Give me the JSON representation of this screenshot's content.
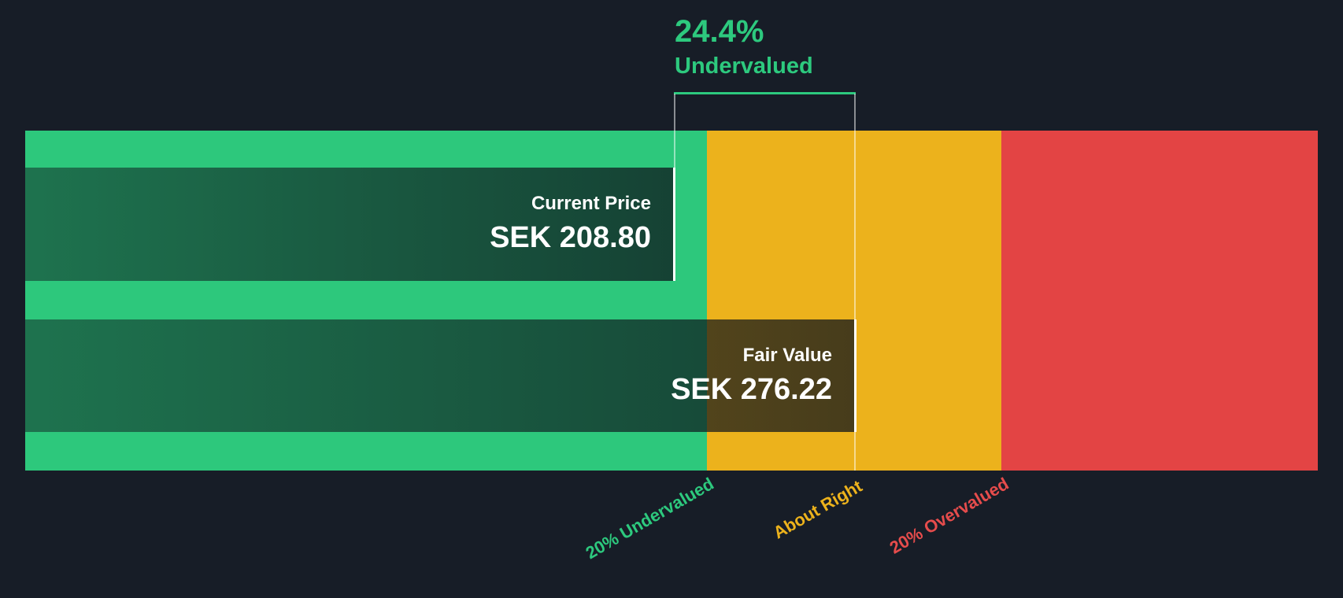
{
  "annotation": {
    "percent": "24.4%",
    "label": "Undervalued"
  },
  "boxes": {
    "current": {
      "label": "Current Price",
      "value": "SEK 208.80"
    },
    "fair": {
      "label": "Fair Value",
      "value": "SEK 276.22"
    }
  },
  "colors": {
    "background": "#171D27",
    "undervalued_green": "#2DC87C",
    "about_right_yellow": "#ECB21C",
    "overvalued_red": "#E34444",
    "annotation_green": "#2DC97E",
    "overvalued_label_red": "#E64C4C",
    "box_text_white": "#FFFFFF"
  },
  "chart_data": {
    "type": "bar",
    "orientation": "horizontal",
    "series": [
      {
        "name": "Current Price",
        "value": 208.8,
        "currency": "SEK"
      },
      {
        "name": "Fair Value",
        "value": 276.22,
        "currency": "SEK"
      }
    ],
    "discount_percent": 24.4,
    "discount_direction": "Undervalued",
    "zones": [
      {
        "label": "20% Undervalued",
        "color": "#2DC87C",
        "range": "price below 80% of fair value boundary"
      },
      {
        "label": "About Right",
        "color": "#ECB21C",
        "range": "80% to 120% of fair value"
      },
      {
        "label": "20% Overvalued",
        "color": "#E34444",
        "range": "price above 120% of fair value"
      }
    ],
    "legend_position": "below-axis-rotated",
    "grid": false
  }
}
